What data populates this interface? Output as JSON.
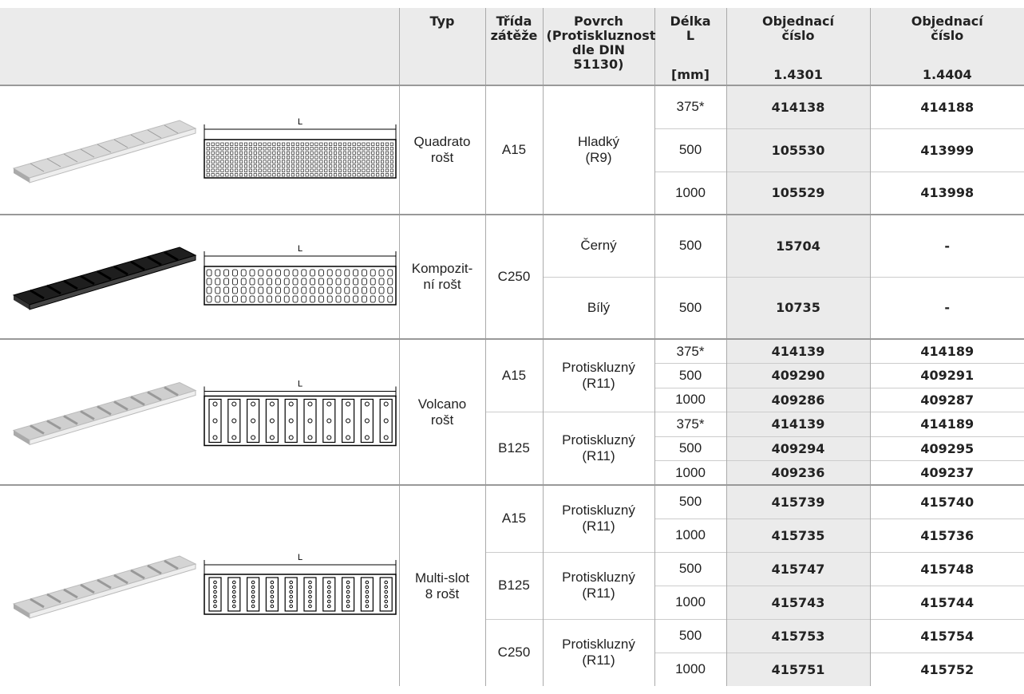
{
  "header": {
    "type": "Typ",
    "load_class": "Třída\nzátěže",
    "surface": "Povrch\n(Protiskluznost\ndle DIN 51130)",
    "length": "Délka\nL",
    "length_unit": "[mm]",
    "order_no_1": "Objednací\nčíslo",
    "material_1": "1.4301",
    "order_no_2": "Objednací\nčíslo",
    "material_2": "1.4404"
  },
  "groups": [
    {
      "type": "Quadrato\nrošt",
      "drawing_label": "L",
      "classes": [
        {
          "load_class": "A15",
          "surfaces": [
            {
              "surface": "Hladký\n(R9)",
              "rows": [
                {
                  "length": "375*",
                  "no_1": "414138",
                  "no_2": "414188"
                },
                {
                  "length": "500",
                  "no_1": "105530",
                  "no_2": "413999"
                },
                {
                  "length": "1000",
                  "no_1": "105529",
                  "no_2": "413998"
                }
              ]
            }
          ]
        }
      ]
    },
    {
      "type": "Kompozit-\nní rošt",
      "drawing_label": "L",
      "classes": [
        {
          "load_class": "C250",
          "surfaces": [
            {
              "surface": "Černý",
              "rows": [
                {
                  "length": "500",
                  "no_1": "15704",
                  "no_2": "-"
                }
              ]
            },
            {
              "surface": "Bílý",
              "rows": [
                {
                  "length": "500",
                  "no_1": "10735",
                  "no_2": "-"
                }
              ]
            }
          ]
        }
      ]
    },
    {
      "type": "Volcano\nrošt",
      "drawing_label": "L",
      "classes": [
        {
          "load_class": "A15",
          "surfaces": [
            {
              "surface": "Protiskluzný\n(R11)",
              "rows": [
                {
                  "length": "375*",
                  "no_1": "414139",
                  "no_2": "414189"
                },
                {
                  "length": "500",
                  "no_1": "409290",
                  "no_2": "409291"
                },
                {
                  "length": "1000",
                  "no_1": "409286",
                  "no_2": "409287"
                }
              ]
            }
          ]
        },
        {
          "load_class": "B125",
          "surfaces": [
            {
              "surface": "Protiskluzný\n(R11)",
              "rows": [
                {
                  "length": "375*",
                  "no_1": "414139",
                  "no_2": "414189"
                },
                {
                  "length": "500",
                  "no_1": "409294",
                  "no_2": "409295"
                },
                {
                  "length": "1000",
                  "no_1": "409236",
                  "no_2": "409237"
                }
              ]
            }
          ]
        }
      ]
    },
    {
      "type": "Multi-slot\n8 rošt",
      "drawing_label": "L",
      "classes": [
        {
          "load_class": "A15",
          "surfaces": [
            {
              "surface": "Protiskluzný\n(R11)",
              "rows": [
                {
                  "length": "500",
                  "no_1": "415739",
                  "no_2": "415740"
                },
                {
                  "length": "1000",
                  "no_1": "415735",
                  "no_2": "415736"
                }
              ]
            }
          ]
        },
        {
          "load_class": "B125",
          "surfaces": [
            {
              "surface": "Protiskluzný\n(R11)",
              "rows": [
                {
                  "length": "500",
                  "no_1": "415747",
                  "no_2": "415748"
                },
                {
                  "length": "1000",
                  "no_1": "415743",
                  "no_2": "415744"
                }
              ]
            }
          ]
        },
        {
          "load_class": "C250",
          "surfaces": [
            {
              "surface": "Protiskluzný\n(R11)",
              "rows": [
                {
                  "length": "500",
                  "no_1": "415753",
                  "no_2": "415754"
                },
                {
                  "length": "1000",
                  "no_1": "415751",
                  "no_2": "415752"
                }
              ]
            }
          ]
        }
      ]
    }
  ]
}
